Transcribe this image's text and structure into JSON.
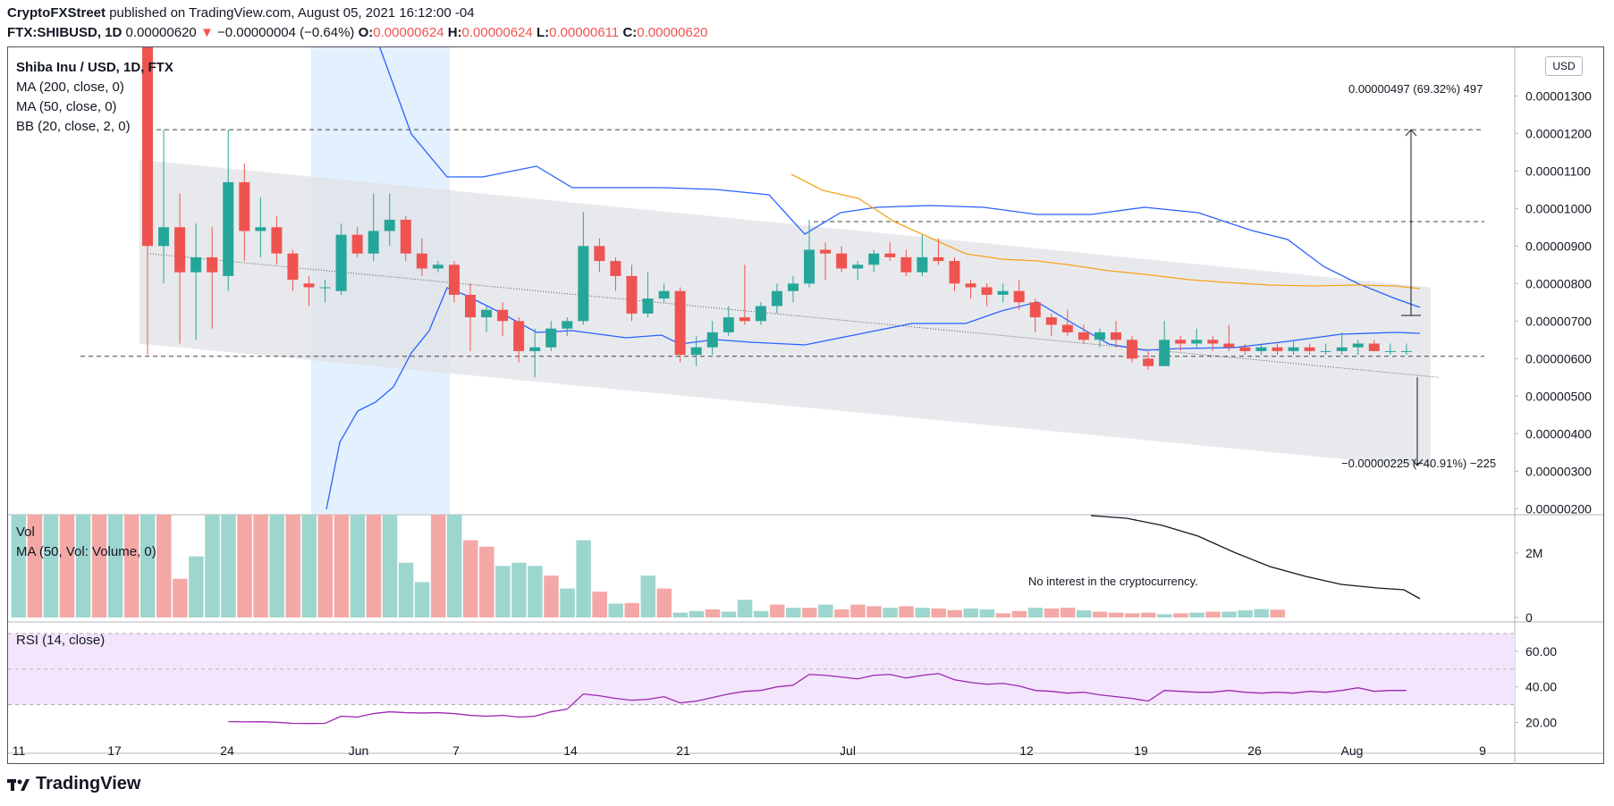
{
  "header": {
    "publisher": "CryptoFXStreet",
    "published_text": "published on TradingView.com, August 05, 2021 16:12:00 -04",
    "symbol": "FTX:SHIBUSD, 1D",
    "last": "0.00000620",
    "change": "−0.00000004 (−0.64%)",
    "o_label": "O:",
    "o": "0.00000624",
    "h_label": "H:",
    "h": "0.00000624",
    "l_label": "L:",
    "l": "0.00000611",
    "c_label": "C:",
    "c": "0.00000620"
  },
  "legend": {
    "title": "Shiba Inu / USD, 1D, FTX",
    "ma200": "MA (200, close, 0)",
    "ma50": "MA (50, close, 0)",
    "bb": "BB (20, close, 2, 0)",
    "vol": "Vol",
    "vol_ma": "MA (50, Vol: Volume, 0)",
    "rsi": "RSI (14, close)"
  },
  "currency": "USD",
  "annotations": {
    "up_measure": "0.00000497 (69.32%) 497",
    "down_measure": "−0.00000225 (−40.91%) −225",
    "volume_note": "No interest in the cryptocurrency."
  },
  "brand": "TradingView",
  "colors": {
    "up": "#26a69a",
    "down": "#ef5350",
    "bb": "#2962ff",
    "ma50": "#f7a21b",
    "rsi_line": "#9c27b0",
    "rsi_band": "#f3e5fc",
    "channel": "#e0e1e6",
    "vol_up": "#9dd6cf",
    "vol_down": "#f4a8a6"
  },
  "chart_data": [
    {
      "type": "candlestick",
      "title": "Shiba Inu / USD, 1D, FTX",
      "y_ticks": [
        "0.00000200",
        "0.00000300",
        "0.00000400",
        "0.00000500",
        "0.00000600",
        "0.00000700",
        "0.00000800",
        "0.00000900",
        "0.00001000",
        "0.00001100",
        "0.00001200",
        "0.00001300"
      ],
      "y_range": [
        1.2e-06,
        1.31e-05
      ],
      "x_ticks": [
        "11",
        "17",
        "24",
        "Jun",
        "7",
        "14",
        "21",
        "Jul",
        "12",
        "19",
        "26",
        "Aug",
        "9"
      ],
      "dates": [
        "May 19",
        "May 20",
        "May 21",
        "May 22",
        "May 23",
        "May 24",
        "May 25",
        "May 26",
        "May 27",
        "May 28",
        "May 29",
        "May 30",
        "May 31",
        "Jun 1",
        "Jun 2",
        "Jun 3",
        "Jun 4",
        "Jun 5",
        "Jun 6",
        "Jun 7",
        "Jun 8",
        "Jun 9",
        "Jun 10",
        "Jun 11",
        "Jun 12",
        "Jun 13",
        "Jun 14",
        "Jun 15",
        "Jun 16",
        "Jun 17",
        "Jun 18",
        "Jun 19",
        "Jun 20",
        "Jun 21",
        "Jun 22",
        "Jun 23",
        "Jun 24",
        "Jun 25",
        "Jun 26",
        "Jun 27",
        "Jun 28",
        "Jun 29",
        "Jun 30",
        "Jul 1",
        "Jul 2",
        "Jul 3",
        "Jul 4",
        "Jul 5",
        "Jul 6",
        "Jul 7",
        "Jul 8",
        "Jul 9",
        "Jul 10",
        "Jul 11",
        "Jul 12",
        "Jul 13",
        "Jul 14",
        "Jul 15",
        "Jul 16",
        "Jul 17",
        "Jul 18",
        "Jul 19",
        "Jul 20",
        "Jul 21",
        "Jul 22",
        "Jul 23",
        "Jul 24",
        "Jul 25",
        "Jul 26",
        "Jul 27",
        "Jul 28",
        "Jul 29",
        "Jul 30",
        "Jul 31",
        "Aug 1",
        "Aug 2",
        "Aug 3",
        "Aug 4",
        "Aug 5"
      ],
      "ohlc": [
        [
          1.45e-05,
          1.5e-05,
          6.1e-06,
          9e-06
        ],
        [
          9e-06,
          1.21e-05,
          8e-06,
          9.5e-06
        ],
        [
          9.5e-06,
          1.04e-05,
          6.4e-06,
          8.3e-06
        ],
        [
          8.3e-06,
          9.6e-06,
          6.5e-06,
          8.7e-06
        ],
        [
          8.7e-06,
          9.5e-06,
          6.8e-06,
          8.3e-06
        ],
        [
          8.2e-06,
          1.21e-05,
          7.8e-06,
          1.07e-05
        ],
        [
          1.07e-05,
          1.12e-05,
          8.6e-06,
          9.4e-06
        ],
        [
          9.4e-06,
          1.03e-05,
          8.7e-06,
          9.5e-06
        ],
        [
          9.5e-06,
          9.8e-06,
          8.5e-06,
          8.8e-06
        ],
        [
          8.8e-06,
          8.9e-06,
          7.8e-06,
          8.1e-06
        ],
        [
          8e-06,
          8.2e-06,
          7.4e-06,
          7.9e-06
        ],
        [
          7.9e-06,
          8.1e-06,
          7.5e-06,
          7.9e-06
        ],
        [
          7.8e-06,
          9.6e-06,
          7.7e-06,
          9.3e-06
        ],
        [
          9.3e-06,
          9.5e-06,
          8.7e-06,
          8.8e-06
        ],
        [
          8.8e-06,
          1.04e-05,
          8.6e-06,
          9.4e-06
        ],
        [
          9.4e-06,
          1.04e-05,
          9e-06,
          9.7e-06
        ],
        [
          9.7e-06,
          9.8e-06,
          8.6e-06,
          8.8e-06
        ],
        [
          8.8e-06,
          9.2e-06,
          8.2e-06,
          8.4e-06
        ],
        [
          8.4e-06,
          8.6e-06,
          8.3e-06,
          8.5e-06
        ],
        [
          8.5e-06,
          8.6e-06,
          7.5e-06,
          7.7e-06
        ],
        [
          7.7e-06,
          8e-06,
          6.2e-06,
          7.1e-06
        ],
        [
          7.1e-06,
          7.4e-06,
          6.7e-06,
          7.3e-06
        ],
        [
          7.3e-06,
          7.5e-06,
          6.6e-06,
          7e-06
        ],
        [
          7e-06,
          7.1e-06,
          5.9e-06,
          6.2e-06
        ],
        [
          6.2e-06,
          6.8e-06,
          5.5e-06,
          6.3e-06
        ],
        [
          6.3e-06,
          7e-06,
          6.2e-06,
          6.8e-06
        ],
        [
          6.8e-06,
          7.1e-06,
          6.6e-06,
          7e-06
        ],
        [
          7e-06,
          9.9e-06,
          6.9e-06,
          9e-06
        ],
        [
          9e-06,
          9.2e-06,
          8.3e-06,
          8.6e-06
        ],
        [
          8.6e-06,
          8.7e-06,
          7.8e-06,
          8.2e-06
        ],
        [
          8.2e-06,
          8.5e-06,
          7e-06,
          7.2e-06
        ],
        [
          7.2e-06,
          8.3e-06,
          7.1e-06,
          7.6e-06
        ],
        [
          7.6e-06,
          8e-06,
          7.5e-06,
          7.8e-06
        ],
        [
          7.8e-06,
          7.9e-06,
          5.9e-06,
          6.1e-06
        ],
        [
          6.1e-06,
          6.6e-06,
          5.8e-06,
          6.3e-06
        ],
        [
          6.3e-06,
          7e-06,
          6.1e-06,
          6.7e-06
        ],
        [
          6.7e-06,
          7.4e-06,
          6.6e-06,
          7.1e-06
        ],
        [
          7.1e-06,
          8.5e-06,
          6.9e-06,
          7e-06
        ],
        [
          7e-06,
          7.5e-06,
          6.9e-06,
          7.4e-06
        ],
        [
          7.4e-06,
          8e-06,
          7.2e-06,
          7.8e-06
        ],
        [
          7.8e-06,
          8.2e-06,
          7.5e-06,
          8e-06
        ],
        [
          8e-06,
          9.7e-06,
          7.9e-06,
          8.9e-06
        ],
        [
          8.9e-06,
          9.1e-06,
          8.1e-06,
          8.8e-06
        ],
        [
          8.8e-06,
          9e-06,
          8.3e-06,
          8.4e-06
        ],
        [
          8.4e-06,
          8.6e-06,
          8.1e-06,
          8.5e-06
        ],
        [
          8.5e-06,
          8.9e-06,
          8.3e-06,
          8.8e-06
        ],
        [
          8.8e-06,
          9.1e-06,
          8.6e-06,
          8.7e-06
        ],
        [
          8.7e-06,
          8.9e-06,
          8.2e-06,
          8.3e-06
        ],
        [
          8.3e-06,
          9.3e-06,
          8.2e-06,
          8.7e-06
        ],
        [
          8.7e-06,
          9.2e-06,
          8.5e-06,
          8.6e-06
        ],
        [
          8.6e-06,
          8.7e-06,
          7.8e-06,
          8e-06
        ],
        [
          8e-06,
          8.1e-06,
          7.6e-06,
          7.9e-06
        ],
        [
          7.9e-06,
          8e-06,
          7.4e-06,
          7.7e-06
        ],
        [
          7.7e-06,
          8e-06,
          7.5e-06,
          7.8e-06
        ],
        [
          7.8e-06,
          8.1e-06,
          7.3e-06,
          7.5e-06
        ],
        [
          7.5e-06,
          7.6e-06,
          6.7e-06,
          7.1e-06
        ],
        [
          7.1e-06,
          7.2e-06,
          6.6e-06,
          6.9e-06
        ],
        [
          6.9e-06,
          7.3e-06,
          6.6e-06,
          6.7e-06
        ],
        [
          6.7e-06,
          6.9e-06,
          6.4e-06,
          6.5e-06
        ],
        [
          6.5e-06,
          6.8e-06,
          6.3e-06,
          6.7e-06
        ],
        [
          6.7e-06,
          7e-06,
          6.3e-06,
          6.5e-06
        ],
        [
          6.5e-06,
          6.6e-06,
          5.9e-06,
          6e-06
        ],
        [
          6e-06,
          6.2e-06,
          5.7e-06,
          5.8e-06
        ],
        [
          5.8e-06,
          7e-06,
          5.8e-06,
          6.5e-06
        ],
        [
          6.5e-06,
          6.6e-06,
          6.2e-06,
          6.4e-06
        ],
        [
          6.4e-06,
          6.8e-06,
          6.3e-06,
          6.5e-06
        ],
        [
          6.5e-06,
          6.6e-06,
          6.2e-06,
          6.4e-06
        ],
        [
          6.4e-06,
          6.9e-06,
          6.2e-06,
          6.3e-06
        ],
        [
          6.3e-06,
          6.4e-06,
          6.1e-06,
          6.2e-06
        ],
        [
          6.2e-06,
          6.4e-06,
          6.1e-06,
          6.3e-06
        ],
        [
          6.3e-06,
          6.4e-06,
          6.1e-06,
          6.2e-06
        ],
        [
          6.2e-06,
          6.5e-06,
          6.1e-06,
          6.3e-06
        ],
        [
          6.3e-06,
          6.4e-06,
          6.1e-06,
          6.2e-06
        ],
        [
          6.2e-06,
          6.4e-06,
          6.1e-06,
          6.2e-06
        ],
        [
          6.2e-06,
          6.7e-06,
          6.1e-06,
          6.3e-06
        ],
        [
          6.3e-06,
          6.5e-06,
          6.1e-06,
          6.4e-06
        ],
        [
          6.4e-06,
          6.5e-06,
          6.2e-06,
          6.2e-06
        ],
        [
          6.2e-06,
          6.4e-06,
          6.1e-06,
          6.2e-06
        ],
        [
          6.2e-06,
          6.4e-06,
          6.1e-06,
          6.2e-06
        ]
      ],
      "horizontal_levels": [
        1.21e-05,
        9.65e-06,
        6.06e-06
      ],
      "channel_upper": [
        [
          0,
          1.13e-05
        ],
        [
          80,
          7.9e-06
        ]
      ],
      "channel_lower": [
        [
          0,
          6.4e-06
        ],
        [
          80,
          3.1e-06
        ]
      ],
      "channel_mid": [
        [
          0,
          8.8e-06
        ],
        [
          80,
          5.5e-06
        ]
      ]
    },
    {
      "type": "bar",
      "title": "Vol",
      "y_ticks": [
        "0",
        "2M"
      ],
      "y_range": [
        0,
        3200000
      ],
      "values": [
        3200000,
        3200000,
        3200000,
        3200000,
        3200000,
        3200000,
        3200000,
        3200000,
        3200000,
        3200000,
        1200000,
        1900000,
        3200000,
        3200000,
        3200000,
        3200000,
        3200000,
        3200000,
        3200000,
        3200000,
        3200000,
        3200000,
        3200000,
        3200000,
        1700000,
        1100000,
        3200000,
        3200000,
        2400000,
        2200000,
        1600000,
        1700000,
        1600000,
        1300000,
        900000,
        2400000,
        800000,
        430000,
        450000,
        1300000,
        900000,
        150000,
        200000,
        250000,
        180000,
        550000,
        200000,
        400000,
        300000,
        300000,
        400000,
        250000,
        400000,
        350000,
        300000,
        350000,
        300000,
        280000,
        230000,
        280000,
        250000,
        130000,
        200000,
        300000,
        280000,
        300000,
        220000,
        180000,
        150000,
        130000,
        150000,
        100000,
        130000,
        150000,
        180000,
        180000,
        220000,
        260000,
        240000
      ]
    },
    {
      "type": "line",
      "title": "RSI (14, close)",
      "y_ticks": [
        "20.00",
        "40.00",
        "60.00"
      ],
      "y_range": [
        12,
        70
      ],
      "band": [
        30,
        70
      ],
      "values": [
        null,
        null,
        null,
        null,
        null,
        20.5,
        20.3,
        20.4,
        20.1,
        19.5,
        19.4,
        19.5,
        23.5,
        23.0,
        25.0,
        26.0,
        25.5,
        25.3,
        25.5,
        25.0,
        24.0,
        23.5,
        24.0,
        23.0,
        23.5,
        26.0,
        27.5,
        36.0,
        35.0,
        33.5,
        32.5,
        33.0,
        34.5,
        31.0,
        32.0,
        34.0,
        36.0,
        37.5,
        38.0,
        40.0,
        41.0,
        47.0,
        46.5,
        45.5,
        44.5,
        46.5,
        47.0,
        45.0,
        46.5,
        47.5,
        44.0,
        42.5,
        41.5,
        42.0,
        40.5,
        38.0,
        37.5,
        36.5,
        37.0,
        35.5,
        34.5,
        33.5,
        32.0,
        38.0,
        37.5,
        37.0,
        37.0,
        38.0,
        37.0,
        36.5,
        37.0,
        36.5,
        37.5,
        37.0,
        38.0,
        39.5,
        37.5,
        38.0,
        38.0
      ]
    }
  ]
}
